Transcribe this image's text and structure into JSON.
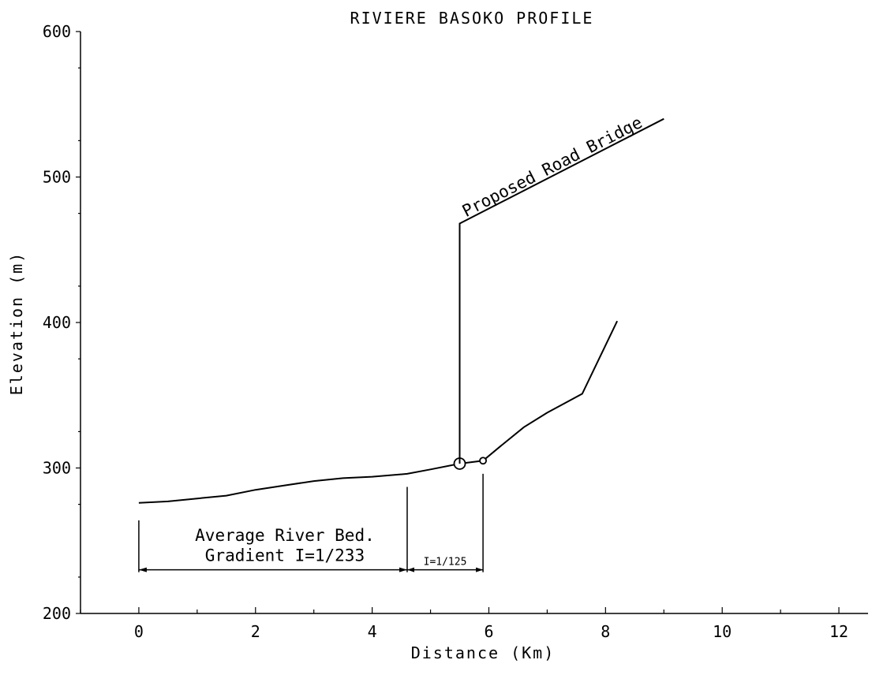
{
  "chart_data": {
    "type": "line",
    "title": "RIVIERE BASOKO PROFILE",
    "xlabel": "Distance (Km)",
    "ylabel": "Elevation (m)",
    "xlim": [
      -1,
      12.5
    ],
    "ylim": [
      200,
      600
    ],
    "xticks": [
      0,
      2,
      4,
      6,
      8,
      10,
      12
    ],
    "yticks": [
      200,
      300,
      400,
      500,
      600
    ],
    "grid": false,
    "series": [
      {
        "x": [
          0,
          0.5,
          1.0,
          1.5,
          2.0,
          2.5,
          3.0,
          3.5,
          4.0,
          4.6,
          5.0,
          5.5,
          5.9,
          6.2,
          6.6,
          7.0,
          7.6,
          8.2
        ],
        "y": [
          276,
          277,
          279,
          281,
          285,
          288,
          291,
          293,
          294,
          296,
          299,
          303,
          305,
          315,
          328,
          338,
          351,
          401
        ]
      }
    ],
    "markers": [
      {
        "x": 5.5,
        "y": 303,
        "size": "large"
      },
      {
        "x": 5.9,
        "y": 305,
        "size": "small"
      }
    ],
    "annotations": {
      "bridge_label": "Proposed Road Bridge",
      "bridge_leader": {
        "x": [
          5.5,
          5.5,
          9.0
        ],
        "y": [
          303,
          468,
          540
        ]
      },
      "gradient_label_line1": "Average River Bed.",
      "gradient_label_line2": "Gradient I=1/233",
      "gradient_segment": {
        "x": [
          0,
          4.6
        ],
        "y": 230
      },
      "gradient2_label": "I=1/125",
      "gradient2_segment": {
        "x": [
          4.6,
          5.9
        ],
        "y": 230
      }
    }
  }
}
